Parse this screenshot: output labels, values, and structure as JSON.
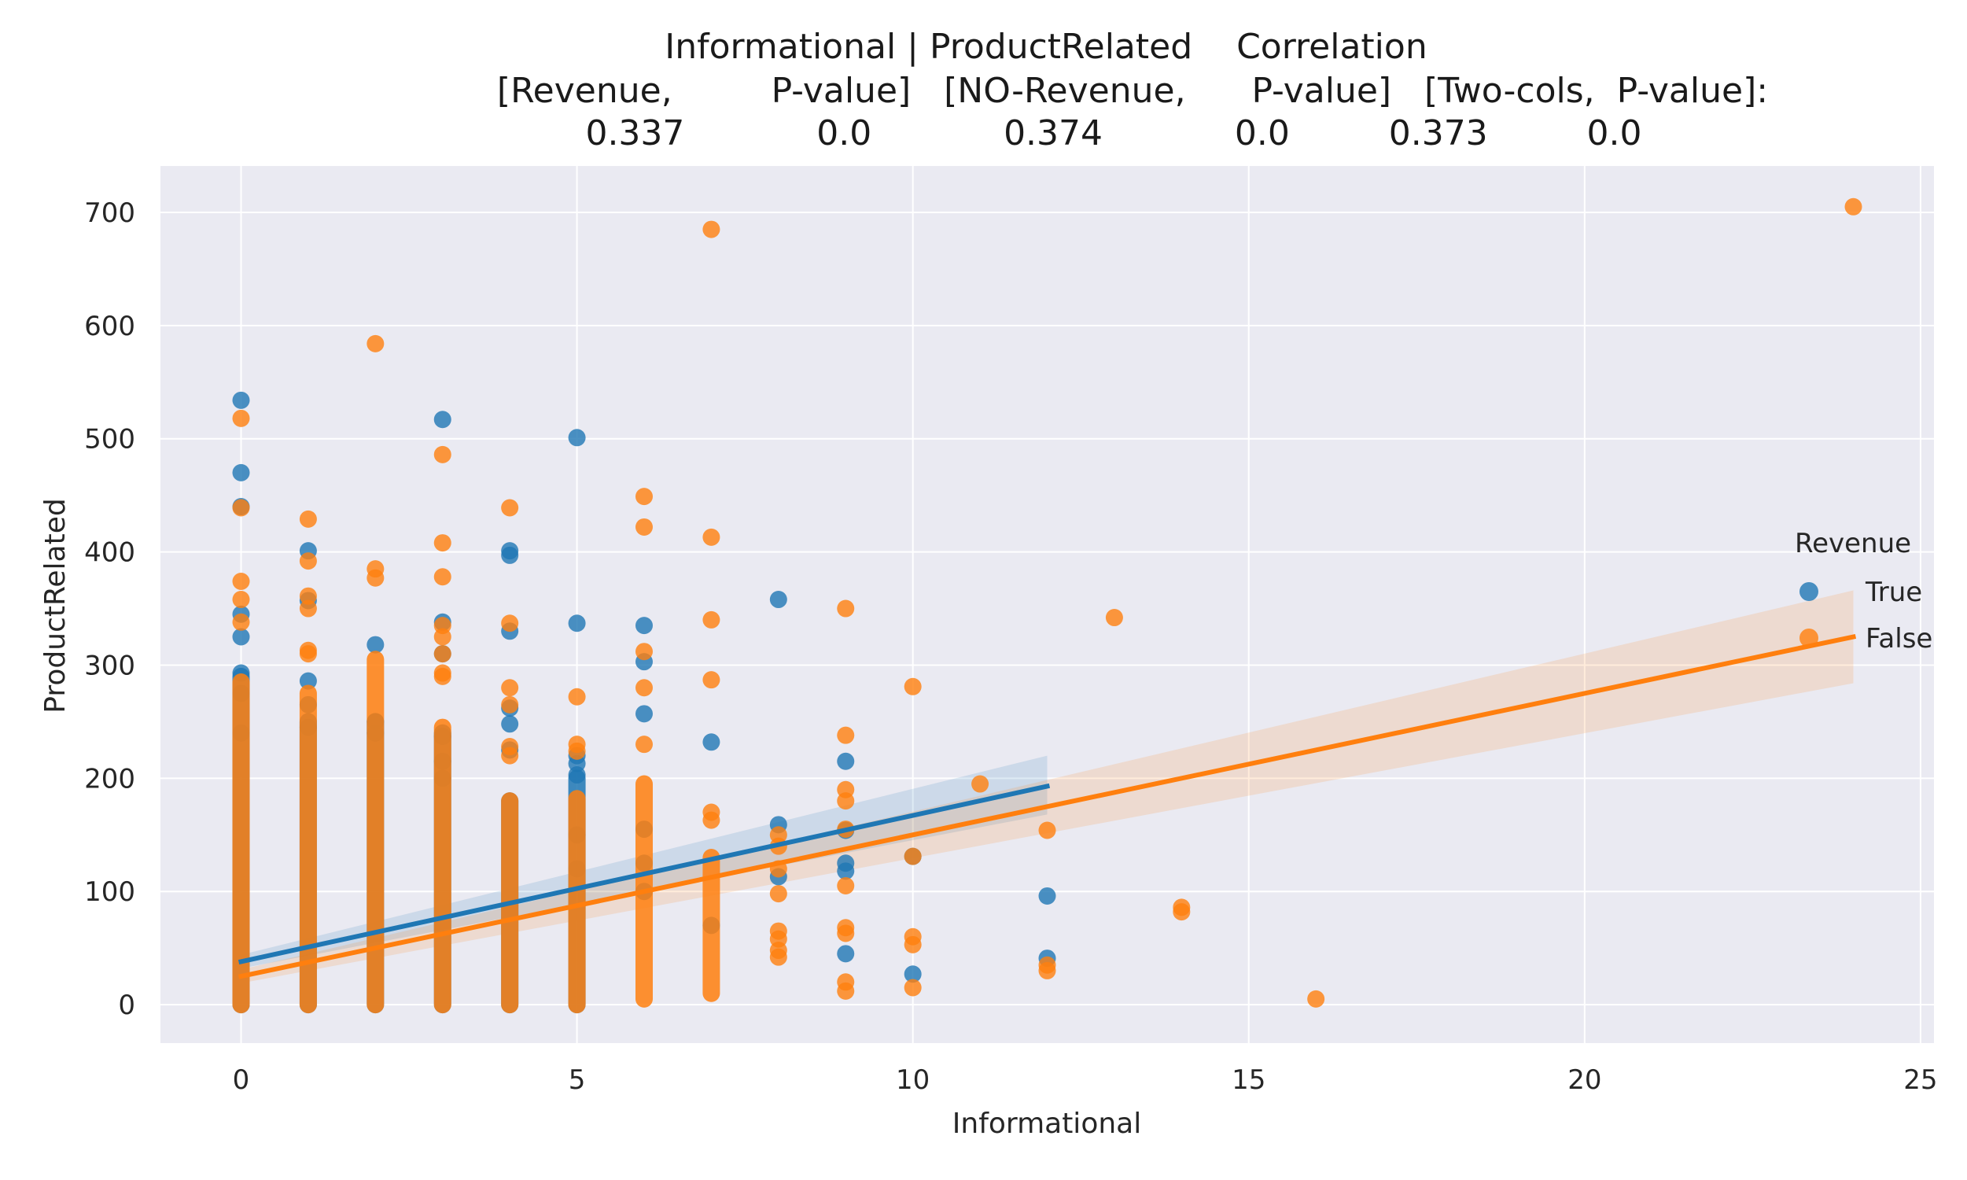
{
  "chart_data": {
    "type": "scatter",
    "title_lines": [
      "Informational | ProductRelated    Correlation",
      "[Revenue,         P-value]   [NO-Revenue,      P-value]   [Two-cols,  P-value]:",
      "0.337            0.0            0.374            0.0         0.373         0.0"
    ],
    "xlabel": "Informational",
    "ylabel": "ProductRelated",
    "xlim": [
      -1.2,
      25.2
    ],
    "ylim": [
      -34,
      741
    ],
    "xticks": [
      0,
      5,
      10,
      15,
      20,
      25
    ],
    "yticks": [
      0,
      100,
      200,
      300,
      400,
      500,
      600,
      700
    ],
    "grid": true,
    "legend": {
      "title": "Revenue",
      "placement": "right",
      "entries": [
        "True",
        "False"
      ]
    },
    "colors": {
      "True": "#1f77b4",
      "False": "#ff7f0e",
      "background": "#eaeaf2",
      "grid": "#ffffff"
    },
    "series": [
      {
        "name": "True",
        "regression": {
          "x": [
            0,
            12
          ],
          "y": [
            38,
            193
          ],
          "ci_upper": [
            44,
            220
          ],
          "ci_lower": [
            32,
            168
          ]
        },
        "columns": [
          {
            "x": 0,
            "range": [
              0,
              290
            ]
          },
          {
            "x": 1,
            "range": [
              0,
              250
            ]
          },
          {
            "x": 2,
            "range": [
              0,
              250
            ]
          },
          {
            "x": 3,
            "range": [
              0,
              240
            ]
          },
          {
            "x": 4,
            "range": [
              0,
              180
            ]
          },
          {
            "x": 5,
            "range": [
              0,
              200
            ]
          }
        ],
        "points": [
          [
            0,
            534
          ],
          [
            0,
            470
          ],
          [
            0,
            440
          ],
          [
            0,
            345
          ],
          [
            0,
            325
          ],
          [
            0,
            293
          ],
          [
            0,
            275
          ],
          [
            0,
            240
          ],
          [
            1,
            401
          ],
          [
            1,
            357
          ],
          [
            1,
            286
          ],
          [
            1,
            265
          ],
          [
            1,
            245
          ],
          [
            2,
            318
          ],
          [
            2,
            250
          ],
          [
            2,
            240
          ],
          [
            3,
            517
          ],
          [
            3,
            338
          ],
          [
            3,
            310
          ],
          [
            3,
            237
          ],
          [
            3,
            215
          ],
          [
            3,
            200
          ],
          [
            4,
            401
          ],
          [
            4,
            397
          ],
          [
            4,
            330
          ],
          [
            4,
            262
          ],
          [
            4,
            248
          ],
          [
            4,
            225
          ],
          [
            5,
            501
          ],
          [
            5,
            337
          ],
          [
            5,
            220
          ],
          [
            5,
            213
          ],
          [
            5,
            203
          ],
          [
            5,
            150
          ],
          [
            5,
            120
          ],
          [
            6,
            335
          ],
          [
            6,
            303
          ],
          [
            6,
            257
          ],
          [
            6,
            155
          ],
          [
            6,
            125
          ],
          [
            6,
            100
          ],
          [
            7,
            232
          ],
          [
            7,
            70
          ],
          [
            8,
            358
          ],
          [
            8,
            159
          ],
          [
            8,
            113
          ],
          [
            9,
            215
          ],
          [
            9,
            154
          ],
          [
            9,
            125
          ],
          [
            9,
            118
          ],
          [
            9,
            45
          ],
          [
            10,
            131
          ],
          [
            10,
            27
          ],
          [
            12,
            96
          ],
          [
            12,
            41
          ]
        ]
      },
      {
        "name": "False",
        "regression": {
          "x": [
            0,
            24
          ],
          "y": [
            25,
            325
          ],
          "ci_upper": [
            31,
            366
          ],
          "ci_lower": [
            19,
            284
          ]
        },
        "columns": [
          {
            "x": 0,
            "range": [
              0,
              285
            ]
          },
          {
            "x": 1,
            "range": [
              0,
              275
            ]
          },
          {
            "x": 2,
            "range": [
              0,
              305
            ]
          },
          {
            "x": 3,
            "range": [
              0,
              245
            ]
          },
          {
            "x": 4,
            "range": [
              0,
              180
            ]
          },
          {
            "x": 5,
            "range": [
              0,
              182
            ]
          },
          {
            "x": 6,
            "range": [
              5,
              195
            ]
          },
          {
            "x": 7,
            "range": [
              10,
              130
            ]
          }
        ],
        "points": [
          [
            0,
            518
          ],
          [
            0,
            439
          ],
          [
            0,
            374
          ],
          [
            0,
            358
          ],
          [
            0,
            338
          ],
          [
            1,
            429
          ],
          [
            1,
            392
          ],
          [
            1,
            361
          ],
          [
            1,
            350
          ],
          [
            1,
            313
          ],
          [
            1,
            310
          ],
          [
            2,
            584
          ],
          [
            2,
            385
          ],
          [
            2,
            377
          ],
          [
            3,
            486
          ],
          [
            3,
            408
          ],
          [
            3,
            378
          ],
          [
            3,
            335
          ],
          [
            3,
            325
          ],
          [
            3,
            310
          ],
          [
            3,
            293
          ],
          [
            3,
            290
          ],
          [
            4,
            439
          ],
          [
            4,
            337
          ],
          [
            4,
            280
          ],
          [
            4,
            265
          ],
          [
            4,
            228
          ],
          [
            4,
            220
          ],
          [
            5,
            272
          ],
          [
            5,
            230
          ],
          [
            5,
            224
          ],
          [
            6,
            449
          ],
          [
            6,
            422
          ],
          [
            6,
            312
          ],
          [
            6,
            280
          ],
          [
            6,
            230
          ],
          [
            7,
            685
          ],
          [
            7,
            413
          ],
          [
            7,
            340
          ],
          [
            7,
            287
          ],
          [
            7,
            170
          ],
          [
            7,
            163
          ],
          [
            8,
            150
          ],
          [
            8,
            140
          ],
          [
            8,
            120
          ],
          [
            8,
            98
          ],
          [
            8,
            65
          ],
          [
            8,
            58
          ],
          [
            8,
            48
          ],
          [
            8,
            42
          ],
          [
            9,
            350
          ],
          [
            9,
            238
          ],
          [
            9,
            190
          ],
          [
            9,
            180
          ],
          [
            9,
            155
          ],
          [
            9,
            105
          ],
          [
            9,
            68
          ],
          [
            9,
            63
          ],
          [
            9,
            20
          ],
          [
            9,
            12
          ],
          [
            10,
            281
          ],
          [
            10,
            131
          ],
          [
            10,
            60
          ],
          [
            10,
            53
          ],
          [
            10,
            15
          ],
          [
            11,
            195
          ],
          [
            12,
            154
          ],
          [
            12,
            35
          ],
          [
            12,
            30
          ],
          [
            13,
            342
          ],
          [
            14,
            86
          ],
          [
            14,
            82
          ],
          [
            16,
            5
          ],
          [
            24,
            705
          ]
        ]
      }
    ]
  }
}
